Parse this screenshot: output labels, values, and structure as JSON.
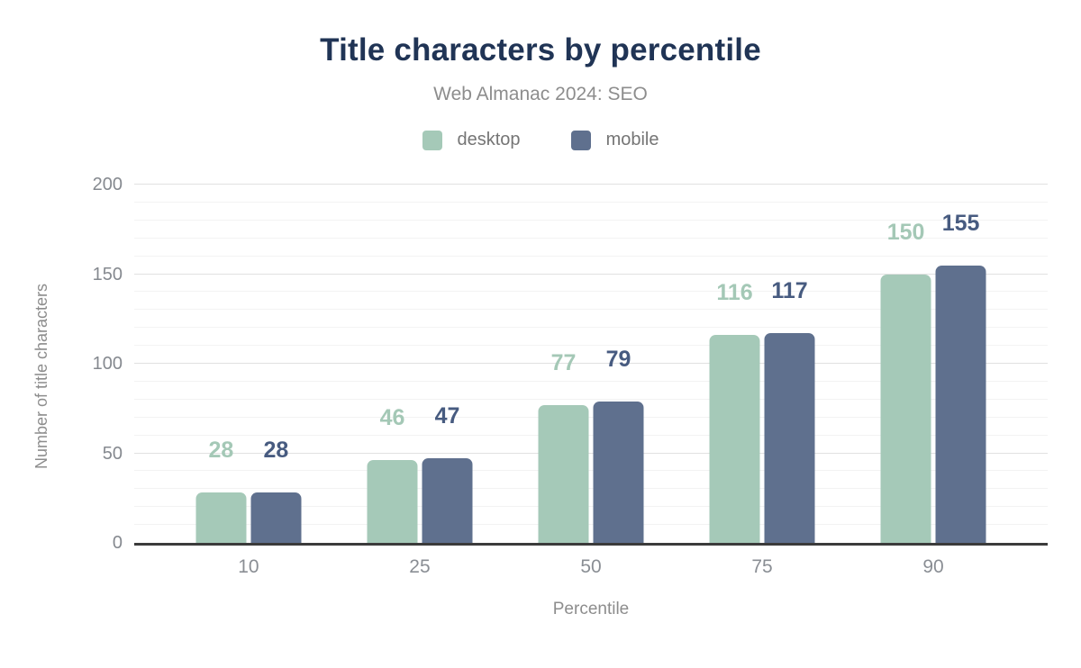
{
  "title": "Title characters by percentile",
  "subtitle": "Web Almanac 2024: SEO",
  "legend": [
    {
      "label": "desktop",
      "color": "#a5c9b8"
    },
    {
      "label": "mobile",
      "color": "#5f708e"
    }
  ],
  "chart_data": {
    "type": "bar",
    "title": "Title characters by percentile",
    "subtitle": "Web Almanac 2024: SEO",
    "categories": [
      "10",
      "25",
      "50",
      "75",
      "90"
    ],
    "series": [
      {
        "name": "desktop",
        "color": "#a5c9b8",
        "label_color": "#a4c8b6",
        "values": [
          28,
          46,
          77,
          116,
          150
        ]
      },
      {
        "name": "mobile",
        "color": "#5f708e",
        "label_color": "#475b80",
        "values": [
          28,
          47,
          79,
          117,
          155
        ]
      }
    ],
    "xlabel": "Percentile",
    "ylabel": "Number of title characters",
    "ylim": [
      0,
      200
    ],
    "yticks": [
      0,
      50,
      100,
      150,
      200
    ],
    "minor_grid_step": 10,
    "grid": "on",
    "legend_position": "top",
    "colors": {
      "title": "#203455",
      "subtitle": "#8d8d8d",
      "axis_line": "#3b3b3b",
      "major_grid": "#e1e1e1",
      "minor_grid": "#f3f3f3",
      "tick_label": "#85898f"
    }
  }
}
